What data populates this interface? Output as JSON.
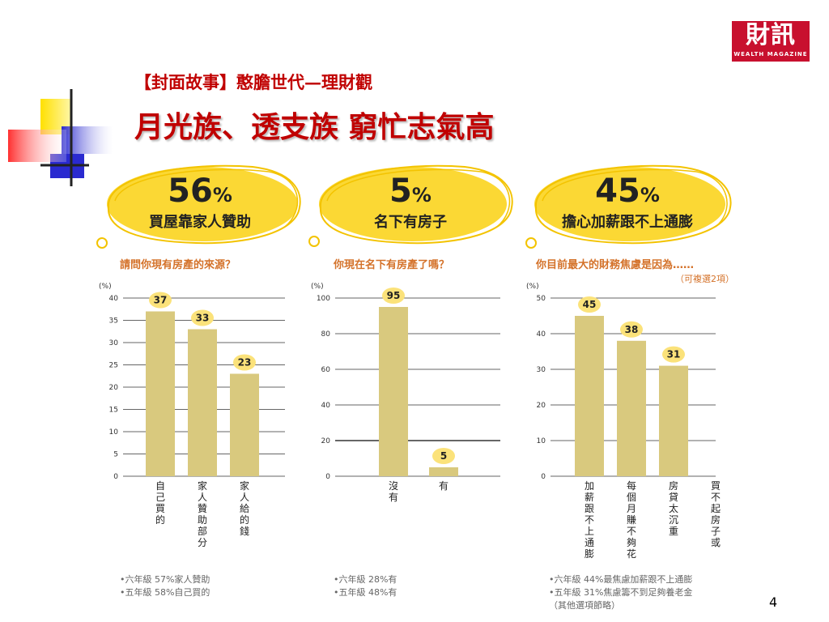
{
  "logo": {
    "zh": "財訊",
    "en": "WEALTH MAGAZINE"
  },
  "header": {
    "subtitle": "【封面故事】憨膽世代—理財觀",
    "title": "月光族、透支族 窮忙志氣高"
  },
  "colors": {
    "bar": "#d9c97e",
    "badge": "#fbd834",
    "title": "#c00000",
    "question": "#d4722a"
  },
  "panels": [
    {
      "badge_value": "56",
      "badge_unit": "%",
      "badge_caption": "買屋靠家人贊助",
      "question": "請問你現有房產的來源？",
      "question_note": "",
      "notes": [
        "•六年級 57%家人贊助",
        "•五年級 58%自己買的"
      ]
    },
    {
      "badge_value": "5",
      "badge_unit": "%",
      "badge_caption": "名下有房子",
      "question": "你現在名下有房產了嗎？",
      "question_note": "",
      "notes": [
        "•六年級 28%有",
        "•五年級 48%有"
      ]
    },
    {
      "badge_value": "45",
      "badge_unit": "%",
      "badge_caption": "擔心加薪跟不上通膨",
      "question": "你目前最大的財務焦慮是因為……",
      "question_note": "（可複選2項）",
      "notes": [
        "•六年級 44%最焦慮加薪跟不上通膨",
        "•五年級 31%焦慮籌不到足夠養老金",
        "（其他選項節略）"
      ]
    }
  ],
  "chart_data": [
    {
      "type": "bar",
      "ylabel": "(%)",
      "ylim": [
        0,
        40
      ],
      "yticks": [
        0,
        5,
        10,
        15,
        20,
        25,
        30,
        35,
        40
      ],
      "categories": [
        "自己買的",
        "家人贊助部分",
        "家人給的錢"
      ],
      "values": [
        37,
        33,
        23
      ]
    },
    {
      "type": "bar",
      "ylabel": "(%)",
      "ylim": [
        0,
        100
      ],
      "yticks": [
        0,
        20,
        40,
        60,
        80,
        100
      ],
      "categories": [
        "沒有",
        "有"
      ],
      "values": [
        95,
        5
      ]
    },
    {
      "type": "bar",
      "ylabel": "(%)",
      "ylim": [
        0,
        50
      ],
      "yticks": [
        0,
        10,
        20,
        30,
        40,
        50
      ],
      "categories": [
        "加薪跟不上通膨",
        "每個月賺不夠花",
        "房貸太沉重",
        "買不起房子或"
      ],
      "values": [
        45,
        38,
        31,
        null
      ]
    }
  ],
  "page_number": "4"
}
